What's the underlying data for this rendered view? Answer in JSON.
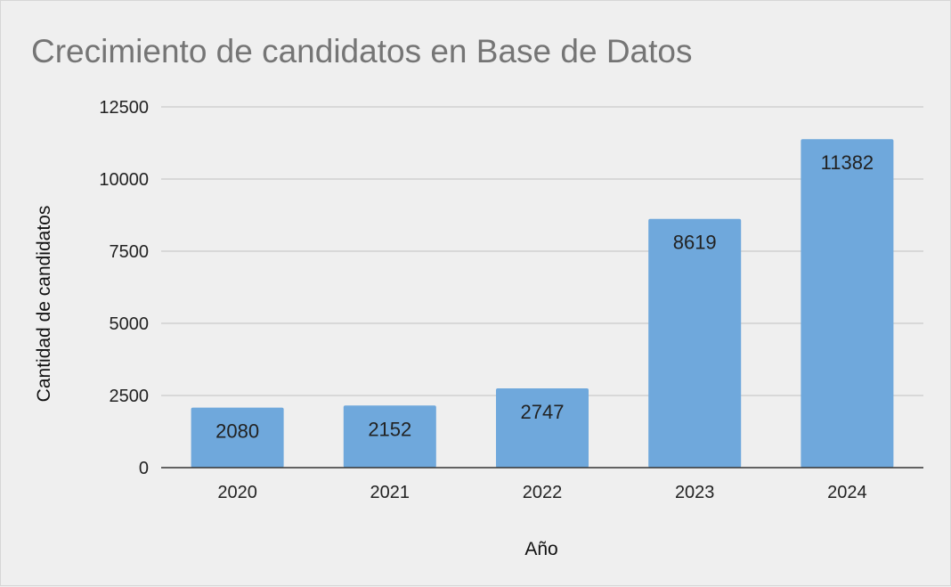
{
  "chart_data": {
    "type": "bar",
    "title": "Crecimiento de candidatos en Base de Datos",
    "xlabel": "Año",
    "ylabel": "Cantidad de candidatos",
    "categories": [
      "2020",
      "2021",
      "2022",
      "2023",
      "2024"
    ],
    "values": [
      2080,
      2152,
      2747,
      8619,
      11382
    ],
    "ylim": [
      0,
      12500
    ],
    "yticks": [
      0,
      2500,
      5000,
      7500,
      10000,
      12500
    ],
    "grid": true,
    "legend": "none",
    "bar_color": "#6fa8dc",
    "data_labels": true
  }
}
